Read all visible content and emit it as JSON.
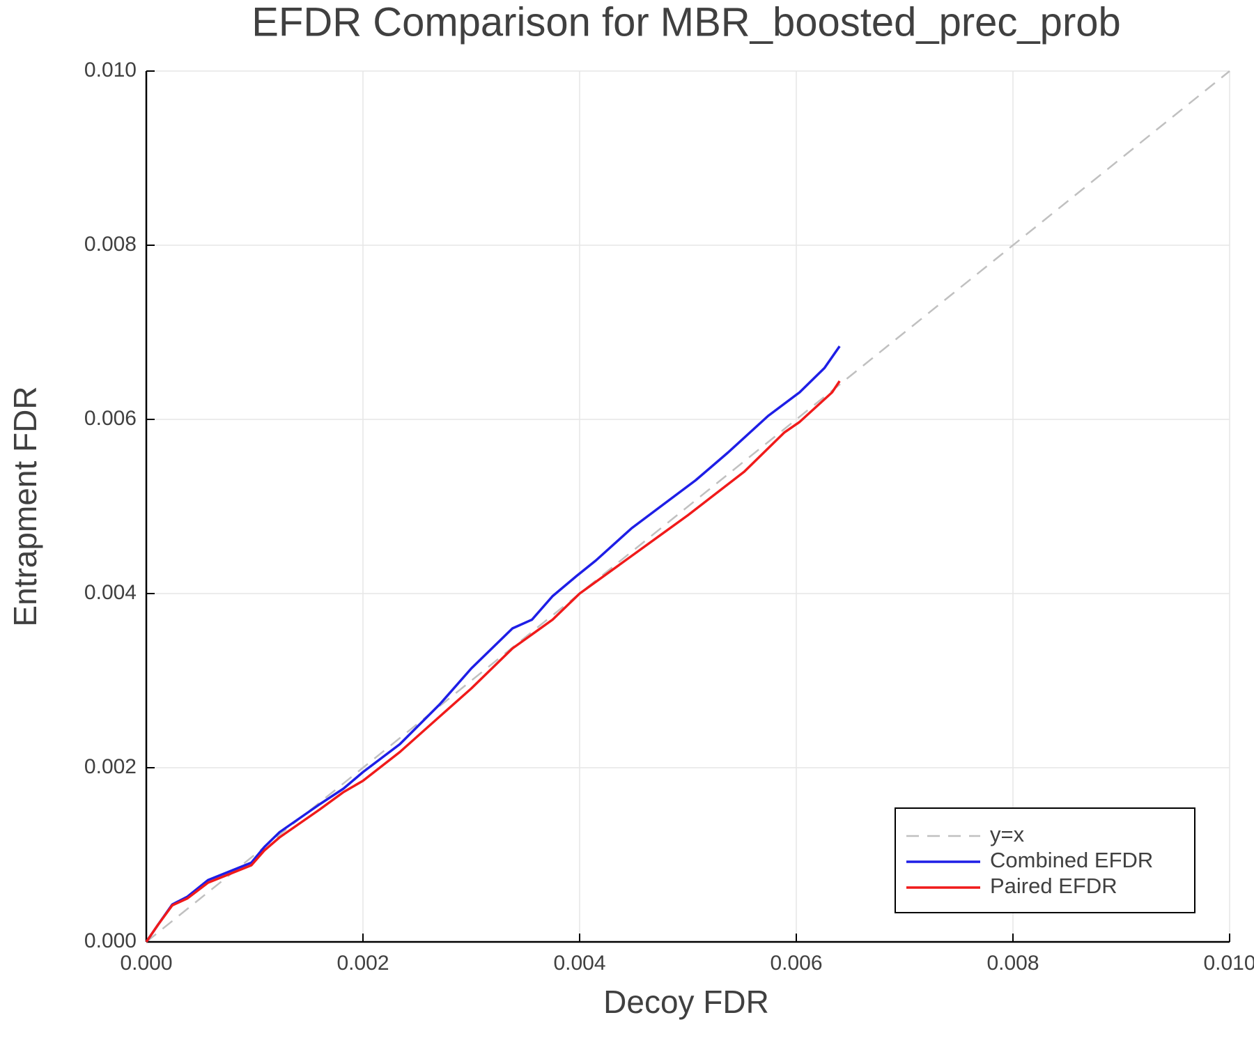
{
  "chart_data": {
    "type": "line",
    "title": "EFDR Comparison for MBR_boosted_prec_prob",
    "x_label": "Decoy FDR",
    "y_label": "Entrapment FDR",
    "xlim": [
      0,
      0.01
    ],
    "ylim": [
      0,
      0.01
    ],
    "xticks": [
      {
        "value": 0,
        "label": "0.000"
      },
      {
        "value": 0.002,
        "label": "0.002"
      },
      {
        "value": 0.004,
        "label": "0.004"
      },
      {
        "value": 0.006,
        "label": "0.006"
      },
      {
        "value": 0.008,
        "label": "0.008"
      },
      {
        "value": 0.01,
        "label": "0.010"
      }
    ],
    "yticks": [
      {
        "value": 0,
        "label": "0.000"
      },
      {
        "value": 0.002,
        "label": "0.002"
      },
      {
        "value": 0.004,
        "label": "0.004"
      },
      {
        "value": 0.006,
        "label": "0.006"
      },
      {
        "value": 0.008,
        "label": "0.008"
      },
      {
        "value": 0.01,
        "label": "0.010"
      }
    ],
    "grid": true,
    "legend": "lower right",
    "series": [
      {
        "name": "y=x",
        "color": "#c0c0c0",
        "dashed": true,
        "x": [
          0,
          0.01
        ],
        "values": [
          0,
          0.01
        ]
      },
      {
        "name": "Combined EFDR",
        "color": "#1e1ee6",
        "dashed": false,
        "x": [
          0,
          0.00011,
          0.00024,
          0.00038,
          0.00057,
          0.00079,
          0.00097,
          0.00109,
          0.00123,
          0.0016,
          0.00182,
          0.002,
          0.00234,
          0.00271,
          0.003,
          0.00338,
          0.00356,
          0.00375,
          0.00397,
          0.00415,
          0.00448,
          0.00478,
          0.00507,
          0.00537,
          0.00574,
          0.00603,
          0.00626,
          0.0064
        ],
        "values": [
          0,
          0.0002,
          0.00043,
          0.00052,
          0.00071,
          0.00082,
          0.00091,
          0.00109,
          0.00126,
          0.00158,
          0.00176,
          0.00195,
          0.00227,
          0.00273,
          0.00314,
          0.0036,
          0.0037,
          0.00397,
          0.0042,
          0.00438,
          0.00475,
          0.00503,
          0.0053,
          0.00562,
          0.00604,
          0.00631,
          0.00659,
          0.00684
        ]
      },
      {
        "name": "Paired EFDR",
        "color": "#f01a1a",
        "dashed": false,
        "x": [
          0,
          0.00011,
          0.00024,
          0.00038,
          0.00057,
          0.00079,
          0.00097,
          0.00109,
          0.00123,
          0.0016,
          0.00182,
          0.002,
          0.00234,
          0.00271,
          0.003,
          0.00338,
          0.00375,
          0.004,
          0.0045,
          0.005,
          0.00552,
          0.00589,
          0.00603,
          0.00633,
          0.0064
        ],
        "values": [
          0,
          0.0002,
          0.00042,
          0.0005,
          0.00068,
          0.00079,
          0.00088,
          0.00105,
          0.0012,
          0.00152,
          0.00172,
          0.00185,
          0.00218,
          0.00259,
          0.00291,
          0.00337,
          0.0037,
          0.004,
          0.00445,
          0.0049,
          0.0054,
          0.00585,
          0.00597,
          0.00631,
          0.00644
        ]
      }
    ]
  }
}
